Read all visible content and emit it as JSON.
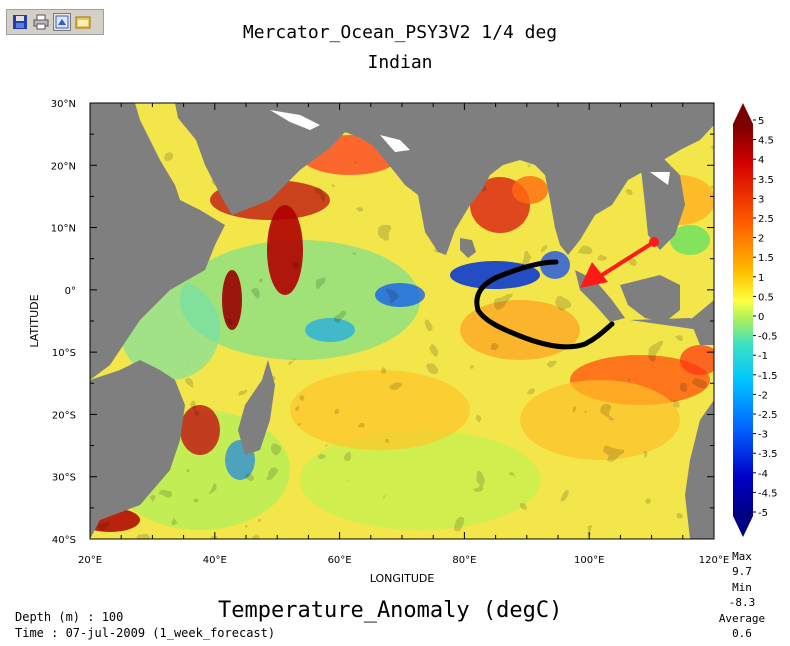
{
  "toolbar": {
    "buttons": [
      {
        "name": "save-icon",
        "active": false
      },
      {
        "name": "print-icon",
        "active": false
      },
      {
        "name": "export-icon",
        "active": true
      },
      {
        "name": "window-icon",
        "active": false
      }
    ]
  },
  "title": {
    "line1": "Mercator_Ocean_PSY3V2 1/4 deg",
    "line2": "Indian"
  },
  "map": {
    "lon_ticks": [
      "20°E",
      "40°E",
      "60°E",
      "80°E",
      "100°E",
      "120°E"
    ],
    "lat_ticks": [
      "30°N",
      "20°N",
      "10°N",
      "0°",
      "10°S",
      "20°S",
      "30°S",
      "40°S"
    ],
    "lon_range": [
      20,
      120
    ],
    "lat_range": [
      -40,
      30
    ],
    "xlabel": "LONGITUDE",
    "ylabel": "LATITUDE",
    "land_color": "#7f7f7f"
  },
  "colorbar": {
    "labels": [
      "5",
      "4.5",
      "4",
      "3.5",
      "3",
      "2.5",
      "2",
      "1.5",
      "1",
      "0.5",
      "0",
      "-0.5",
      "-1",
      "-1.5",
      "-2",
      "-2.5",
      "-3",
      "-3.5",
      "-4",
      "-4.5",
      "-5"
    ],
    "range": [
      -5,
      5
    ]
  },
  "stats": {
    "max_label": "Max",
    "max_value": "9.7",
    "min_label": "Min",
    "min_value": "-8.3",
    "avg_label": "Average",
    "avg_value": "0.6"
  },
  "footer": {
    "depth": "Depth (m) : 100",
    "time": "Time : 07-jul-2009 (1_week_forecast)",
    "variable": "Temperature_Anomaly (degC)"
  },
  "annotations": {
    "arrow_color": "#ff1a1a",
    "contour_color": "#000000"
  }
}
